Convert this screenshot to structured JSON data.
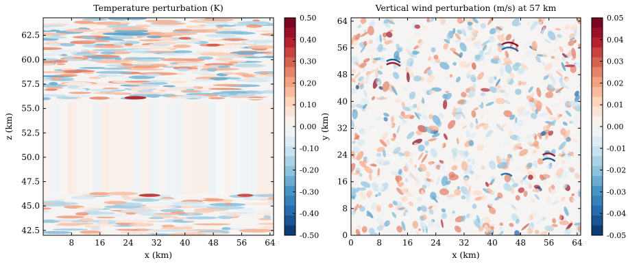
{
  "chart_data": [
    {
      "type": "heatmap",
      "title": "Temperature perturbation (K)",
      "xlabel": "x (km)",
      "ylabel": "z (km)",
      "xlim": [
        0,
        65
      ],
      "ylim": [
        42,
        64.3
      ],
      "xticks": [
        {
          "value": 8,
          "label": "8"
        },
        {
          "value": 16,
          "label": "16"
        },
        {
          "value": 24,
          "label": "24"
        },
        {
          "value": 32,
          "label": "32"
        },
        {
          "value": 40,
          "label": "40"
        },
        {
          "value": 48,
          "label": "48"
        },
        {
          "value": 56,
          "label": "56"
        },
        {
          "value": 64,
          "label": "64"
        }
      ],
      "yticks": [
        {
          "value": 42.5,
          "label": "42.5"
        },
        {
          "value": 45.0,
          "label": "45.0"
        },
        {
          "value": 47.5,
          "label": "47.5"
        },
        {
          "value": 50.0,
          "label": "50.0"
        },
        {
          "value": 52.5,
          "label": "52.5"
        },
        {
          "value": 55.0,
          "label": "55.0"
        },
        {
          "value": 57.5,
          "label": "57.5"
        },
        {
          "value": 60.0,
          "label": "60.0"
        },
        {
          "value": 62.5,
          "label": "62.5"
        }
      ],
      "colorbar": {
        "colormap": "RdBu_r",
        "range": [
          -0.5,
          0.5
        ],
        "ticks": [
          "0.50",
          "0.40",
          "0.30",
          "0.20",
          "0.10",
          "0.00",
          "-0.10",
          "-0.20",
          "-0.30",
          "-0.40",
          "-0.50"
        ]
      },
      "grid": false
    },
    {
      "type": "heatmap",
      "title": "Vertical wind perturbation (m/s) at 57 km",
      "xlabel": "x (km)",
      "ylabel": "y (km)",
      "xlim": [
        0,
        65
      ],
      "ylim": [
        0,
        65
      ],
      "xticks": [
        {
          "value": 0,
          "label": "0"
        },
        {
          "value": 8,
          "label": "8"
        },
        {
          "value": 16,
          "label": "16"
        },
        {
          "value": 24,
          "label": "24"
        },
        {
          "value": 32,
          "label": "32"
        },
        {
          "value": 40,
          "label": "40"
        },
        {
          "value": 48,
          "label": "48"
        },
        {
          "value": 56,
          "label": "56"
        },
        {
          "value": 64,
          "label": "64"
        }
      ],
      "yticks": [
        {
          "value": 0,
          "label": "0"
        },
        {
          "value": 8,
          "label": "8"
        },
        {
          "value": 16,
          "label": "16"
        },
        {
          "value": 24,
          "label": "24"
        },
        {
          "value": 32,
          "label": "32"
        },
        {
          "value": 40,
          "label": "40"
        },
        {
          "value": 48,
          "label": "48"
        },
        {
          "value": 56,
          "label": "56"
        },
        {
          "value": 64,
          "label": "64"
        }
      ],
      "colorbar": {
        "colormap": "RdBu_r",
        "range": [
          -0.05,
          0.05
        ],
        "ticks": [
          "0.05",
          "0.04",
          "0.03",
          "0.02",
          "0.01",
          "0.00",
          "-0.01",
          "-0.02",
          "-0.03",
          "-0.04",
          "-0.05"
        ]
      },
      "grid": false
    }
  ]
}
